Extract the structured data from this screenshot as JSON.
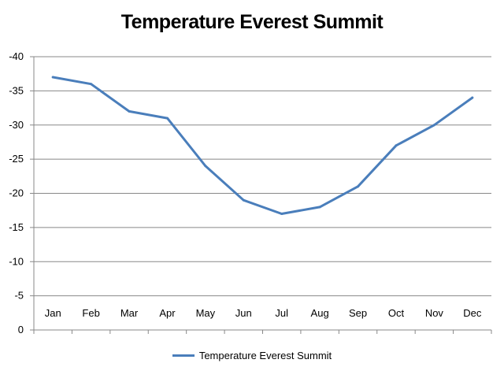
{
  "chart_data": {
    "type": "line",
    "title": "Temperature Everest Summit",
    "categories": [
      "Jan",
      "Feb",
      "Mar",
      "Apr",
      "May",
      "Jun",
      "Jul",
      "Aug",
      "Sep",
      "Oct",
      "Nov",
      "Dec"
    ],
    "series": [
      {
        "name": "Temperature Everest Summit",
        "values": [
          -37,
          -36,
          -32,
          -31,
          -24,
          -19,
          -17,
          -18,
          -21,
          -27,
          -30,
          -34
        ],
        "color": "#4a7ebb"
      }
    ],
    "y_ticks": [
      "0",
      "-5",
      "-10",
      "-15",
      "-20",
      "-25",
      "-30",
      "-35",
      "-40"
    ],
    "ylim": [
      0,
      -40
    ],
    "y_reversed": true,
    "grid": true,
    "legend_position": "bottom"
  }
}
